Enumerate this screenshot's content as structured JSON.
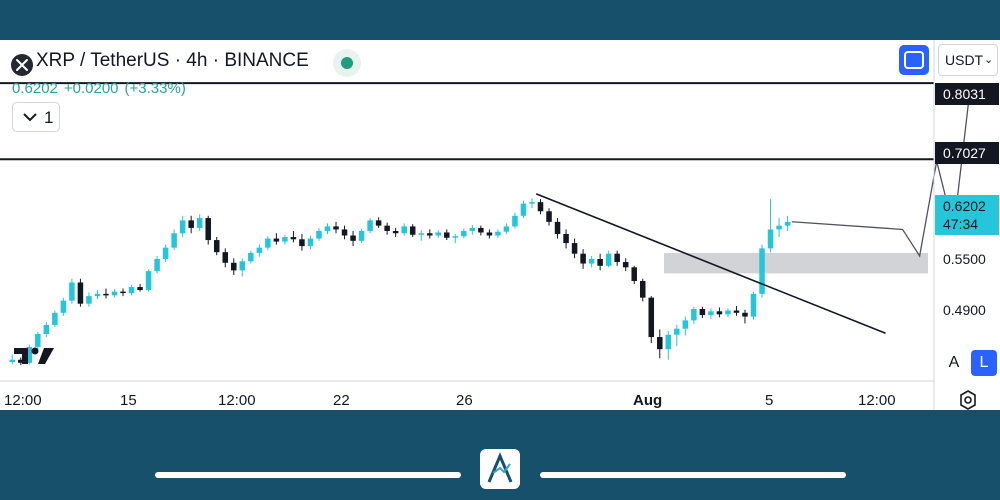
{
  "header": {
    "symbol_title": "XRP / TetherUS · 4h · BINANCE",
    "last_price": "0.6202",
    "change": "+0.0200",
    "change_pct": "(+3.33%)",
    "collapse_count": "1",
    "currency": "USDT"
  },
  "colors": {
    "frame": "#17506b",
    "up": "#26c6da",
    "down": "#131722",
    "current_price_label": "#26c6da",
    "zone": "#d1d3d6",
    "accent": "#2962ff"
  },
  "icons": {
    "symbol": "xrp-logo-icon",
    "market_status": "market-open-dot-icon",
    "collapse": "chevron-down-icon",
    "fullscreen": "fullscreen-icon",
    "currency_dropdown": "chevron-down-icon",
    "watermark": "tradingview-logo-icon",
    "settings": "settings-gear-icon",
    "footer_brand": "brand-a-logo-icon"
  },
  "scale_buttons": {
    "auto": "A",
    "log": "L"
  },
  "chart_data": {
    "type": "candlestick",
    "price_axis_labels": {
      "level_high": "0.8031",
      "level_mid": "0.7027",
      "current_price": "0.6202",
      "countdown": "47:34",
      "tick_1": "0.5500",
      "tick_2": "0.4900"
    },
    "x_ticks": [
      "12:00",
      "15",
      "12:00",
      "22",
      "26",
      "Aug",
      "5",
      "12:00"
    ],
    "ylim": [
      0.41,
      0.86
    ],
    "horizontal_levels": [
      0.8031,
      0.7027
    ],
    "zone": {
      "low": 0.552,
      "high": 0.579
    },
    "trendline": [
      {
        "bar": 62,
        "price": 0.657
      },
      {
        "bar": 103,
        "price": 0.473
      }
    ],
    "projection": [
      {
        "bar": 105,
        "price": 0.61
      },
      {
        "bar": 107,
        "price": 0.575
      },
      {
        "bar": 109,
        "price": 0.7
      },
      {
        "bar": 111,
        "price": 0.61
      },
      {
        "bar": 113,
        "price": 0.8031
      }
    ],
    "current_price": 0.6202,
    "candles": [
      [
        0.435,
        0.445,
        0.432,
        0.438
      ],
      [
        0.438,
        0.441,
        0.431,
        0.434
      ],
      [
        0.434,
        0.458,
        0.432,
        0.455
      ],
      [
        0.455,
        0.475,
        0.452,
        0.472
      ],
      [
        0.472,
        0.488,
        0.468,
        0.484
      ],
      [
        0.484,
        0.503,
        0.481,
        0.5
      ],
      [
        0.5,
        0.52,
        0.496,
        0.516
      ],
      [
        0.516,
        0.545,
        0.512,
        0.54
      ],
      [
        0.54,
        0.545,
        0.508,
        0.512
      ],
      [
        0.512,
        0.527,
        0.508,
        0.522
      ],
      [
        0.522,
        0.53,
        0.518,
        0.525
      ],
      [
        0.525,
        0.532,
        0.519,
        0.523
      ],
      [
        0.523,
        0.531,
        0.52,
        0.528
      ],
      [
        0.528,
        0.532,
        0.522,
        0.526
      ],
      [
        0.526,
        0.537,
        0.523,
        0.534
      ],
      [
        0.534,
        0.538,
        0.528,
        0.53
      ],
      [
        0.53,
        0.557,
        0.528,
        0.555
      ],
      [
        0.555,
        0.575,
        0.552,
        0.571
      ],
      [
        0.571,
        0.59,
        0.567,
        0.586
      ],
      [
        0.586,
        0.61,
        0.583,
        0.605
      ],
      [
        0.605,
        0.628,
        0.6,
        0.622
      ],
      [
        0.622,
        0.628,
        0.605,
        0.612
      ],
      [
        0.612,
        0.63,
        0.608,
        0.625
      ],
      [
        0.625,
        0.628,
        0.59,
        0.596
      ],
      [
        0.596,
        0.6,
        0.576,
        0.58
      ],
      [
        0.58,
        0.585,
        0.56,
        0.566
      ],
      [
        0.566,
        0.572,
        0.55,
        0.556
      ],
      [
        0.556,
        0.572,
        0.548,
        0.568
      ],
      [
        0.568,
        0.582,
        0.565,
        0.579
      ],
      [
        0.579,
        0.59,
        0.574,
        0.586
      ],
      [
        0.586,
        0.601,
        0.583,
        0.598
      ],
      [
        0.598,
        0.605,
        0.59,
        0.594
      ],
      [
        0.594,
        0.603,
        0.59,
        0.6
      ],
      [
        0.6,
        0.608,
        0.593,
        0.597
      ],
      [
        0.597,
        0.604,
        0.582,
        0.588
      ],
      [
        0.588,
        0.602,
        0.584,
        0.598
      ],
      [
        0.598,
        0.612,
        0.595,
        0.608
      ],
      [
        0.608,
        0.618,
        0.604,
        0.614
      ],
      [
        0.614,
        0.62,
        0.605,
        0.61
      ],
      [
        0.61,
        0.615,
        0.597,
        0.602
      ],
      [
        0.602,
        0.608,
        0.588,
        0.595
      ],
      [
        0.595,
        0.611,
        0.592,
        0.608
      ],
      [
        0.608,
        0.625,
        0.605,
        0.622
      ],
      [
        0.622,
        0.626,
        0.612,
        0.615
      ],
      [
        0.615,
        0.619,
        0.603,
        0.608
      ],
      [
        0.608,
        0.612,
        0.6,
        0.605
      ],
      [
        0.605,
        0.618,
        0.602,
        0.614
      ],
      [
        0.614,
        0.617,
        0.6,
        0.603
      ],
      [
        0.603,
        0.609,
        0.595,
        0.605
      ],
      [
        0.605,
        0.61,
        0.598,
        0.602
      ],
      [
        0.602,
        0.609,
        0.599,
        0.606
      ],
      [
        0.606,
        0.61,
        0.596,
        0.599
      ],
      [
        0.599,
        0.604,
        0.592,
        0.601
      ],
      [
        0.601,
        0.611,
        0.598,
        0.608
      ],
      [
        0.608,
        0.616,
        0.603,
        0.612
      ],
      [
        0.612,
        0.615,
        0.602,
        0.606
      ],
      [
        0.606,
        0.61,
        0.598,
        0.602
      ],
      [
        0.602,
        0.61,
        0.599,
        0.607
      ],
      [
        0.607,
        0.618,
        0.604,
        0.614
      ],
      [
        0.614,
        0.632,
        0.611,
        0.628
      ],
      [
        0.628,
        0.648,
        0.625,
        0.644
      ],
      [
        0.644,
        0.651,
        0.638,
        0.646
      ],
      [
        0.646,
        0.65,
        0.63,
        0.634
      ],
      [
        0.634,
        0.638,
        0.615,
        0.62
      ],
      [
        0.62,
        0.625,
        0.598,
        0.604
      ],
      [
        0.604,
        0.61,
        0.585,
        0.592
      ],
      [
        0.592,
        0.598,
        0.572,
        0.578
      ],
      [
        0.578,
        0.584,
        0.558,
        0.565
      ],
      [
        0.565,
        0.575,
        0.56,
        0.571
      ],
      [
        0.571,
        0.578,
        0.556,
        0.562
      ],
      [
        0.562,
        0.582,
        0.56,
        0.578
      ],
      [
        0.578,
        0.582,
        0.562,
        0.567
      ],
      [
        0.567,
        0.572,
        0.555,
        0.56
      ],
      [
        0.56,
        0.562,
        0.538,
        0.542
      ],
      [
        0.542,
        0.545,
        0.515,
        0.52
      ],
      [
        0.52,
        0.522,
        0.46,
        0.468
      ],
      [
        0.468,
        0.478,
        0.44,
        0.452
      ],
      [
        0.452,
        0.476,
        0.438,
        0.471
      ],
      [
        0.471,
        0.484,
        0.456,
        0.479
      ],
      [
        0.479,
        0.495,
        0.47,
        0.49
      ],
      [
        0.49,
        0.508,
        0.485,
        0.505
      ],
      [
        0.505,
        0.508,
        0.493,
        0.497
      ],
      [
        0.497,
        0.506,
        0.492,
        0.502
      ],
      [
        0.502,
        0.507,
        0.494,
        0.498
      ],
      [
        0.498,
        0.506,
        0.494,
        0.503
      ],
      [
        0.503,
        0.509,
        0.496,
        0.5
      ],
      [
        0.5,
        0.504,
        0.486,
        0.495
      ],
      [
        0.495,
        0.528,
        0.491,
        0.525
      ],
      [
        0.525,
        0.59,
        0.52,
        0.585
      ],
      [
        0.585,
        0.65,
        0.58,
        0.61
      ],
      [
        0.61,
        0.625,
        0.6,
        0.615
      ],
      [
        0.615,
        0.628,
        0.608,
        0.62
      ]
    ]
  }
}
